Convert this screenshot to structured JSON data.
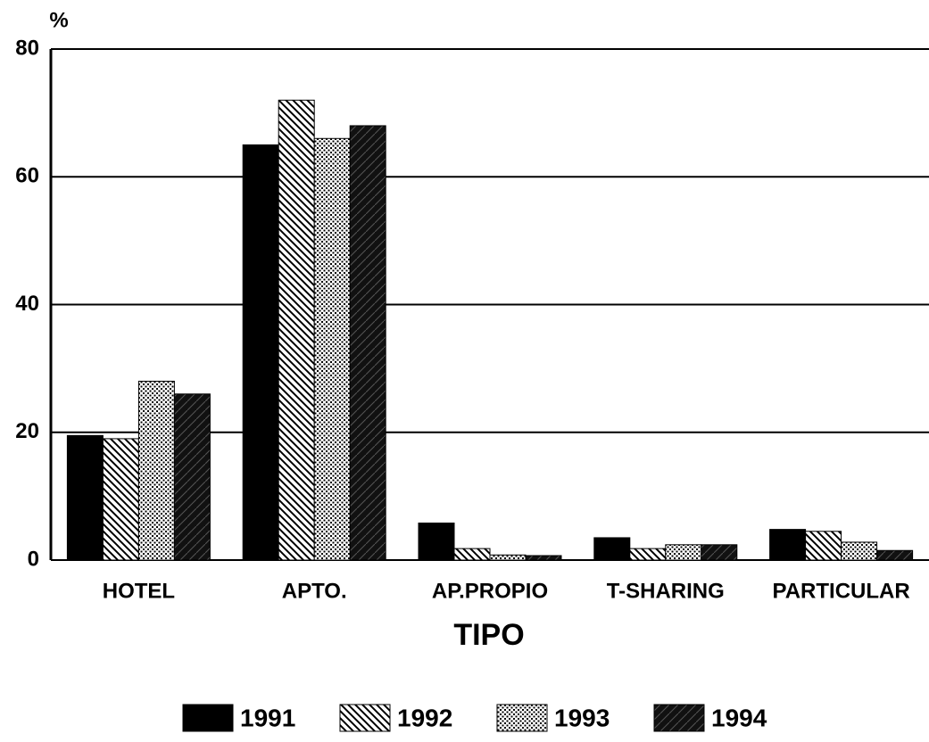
{
  "chart_data": {
    "type": "bar",
    "y_label": "%",
    "x_label": "TIPO",
    "categories": [
      "HOTEL",
      "APTO.",
      "AP.PROPIO",
      "T-SHARING",
      "PARTICULAR"
    ],
    "series": [
      {
        "name": "1991",
        "color": "#000000",
        "pattern": "solid",
        "values": [
          19.5,
          65,
          5.8,
          3.5,
          4.8
        ]
      },
      {
        "name": "1992",
        "color": "#000000",
        "pattern": "diagonal",
        "values": [
          19,
          72,
          1.8,
          1.8,
          4.5
        ]
      },
      {
        "name": "1993",
        "color": "#000000",
        "pattern": "dots",
        "values": [
          28,
          66,
          0.8,
          2.4,
          2.8
        ]
      },
      {
        "name": "1994",
        "color": "#000000",
        "pattern": "crosshatch",
        "values": [
          26,
          68,
          0.7,
          2.4,
          1.5
        ]
      }
    ],
    "ylim": [
      0,
      80
    ],
    "yticks": [
      0,
      20,
      40,
      60,
      80
    ],
    "grid": true,
    "legend": "bottom"
  }
}
